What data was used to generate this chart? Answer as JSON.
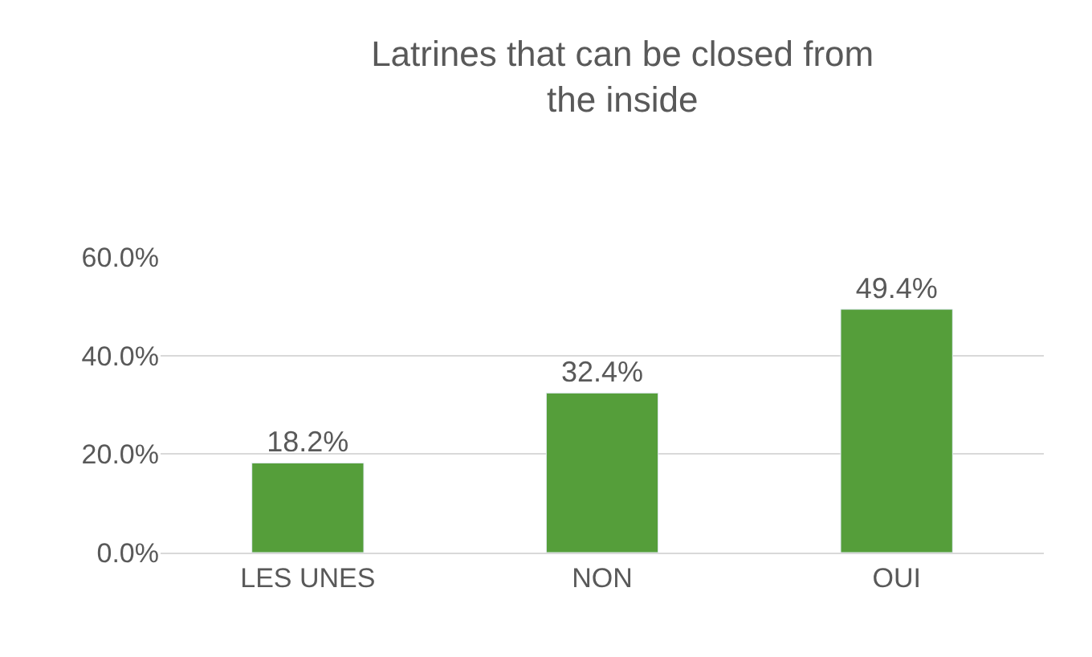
{
  "chart_data": {
    "type": "bar",
    "title": "Latrines that can be closed from the inside",
    "categories": [
      "LES UNES",
      "NON",
      "OUI"
    ],
    "values": [
      18.2,
      32.4,
      49.4
    ],
    "value_labels": [
      "18.2%",
      "32.4%",
      "49.4%"
    ],
    "color": "#559e3a",
    "ylim": [
      0,
      60
    ],
    "yticks": [
      {
        "value": 0,
        "label": "0.0%"
      },
      {
        "value": 20,
        "label": "20.0%"
      },
      {
        "value": 40,
        "label": "40.0%"
      },
      {
        "value": 60,
        "label": "60.0%"
      }
    ],
    "grid": "y",
    "legend": false
  }
}
